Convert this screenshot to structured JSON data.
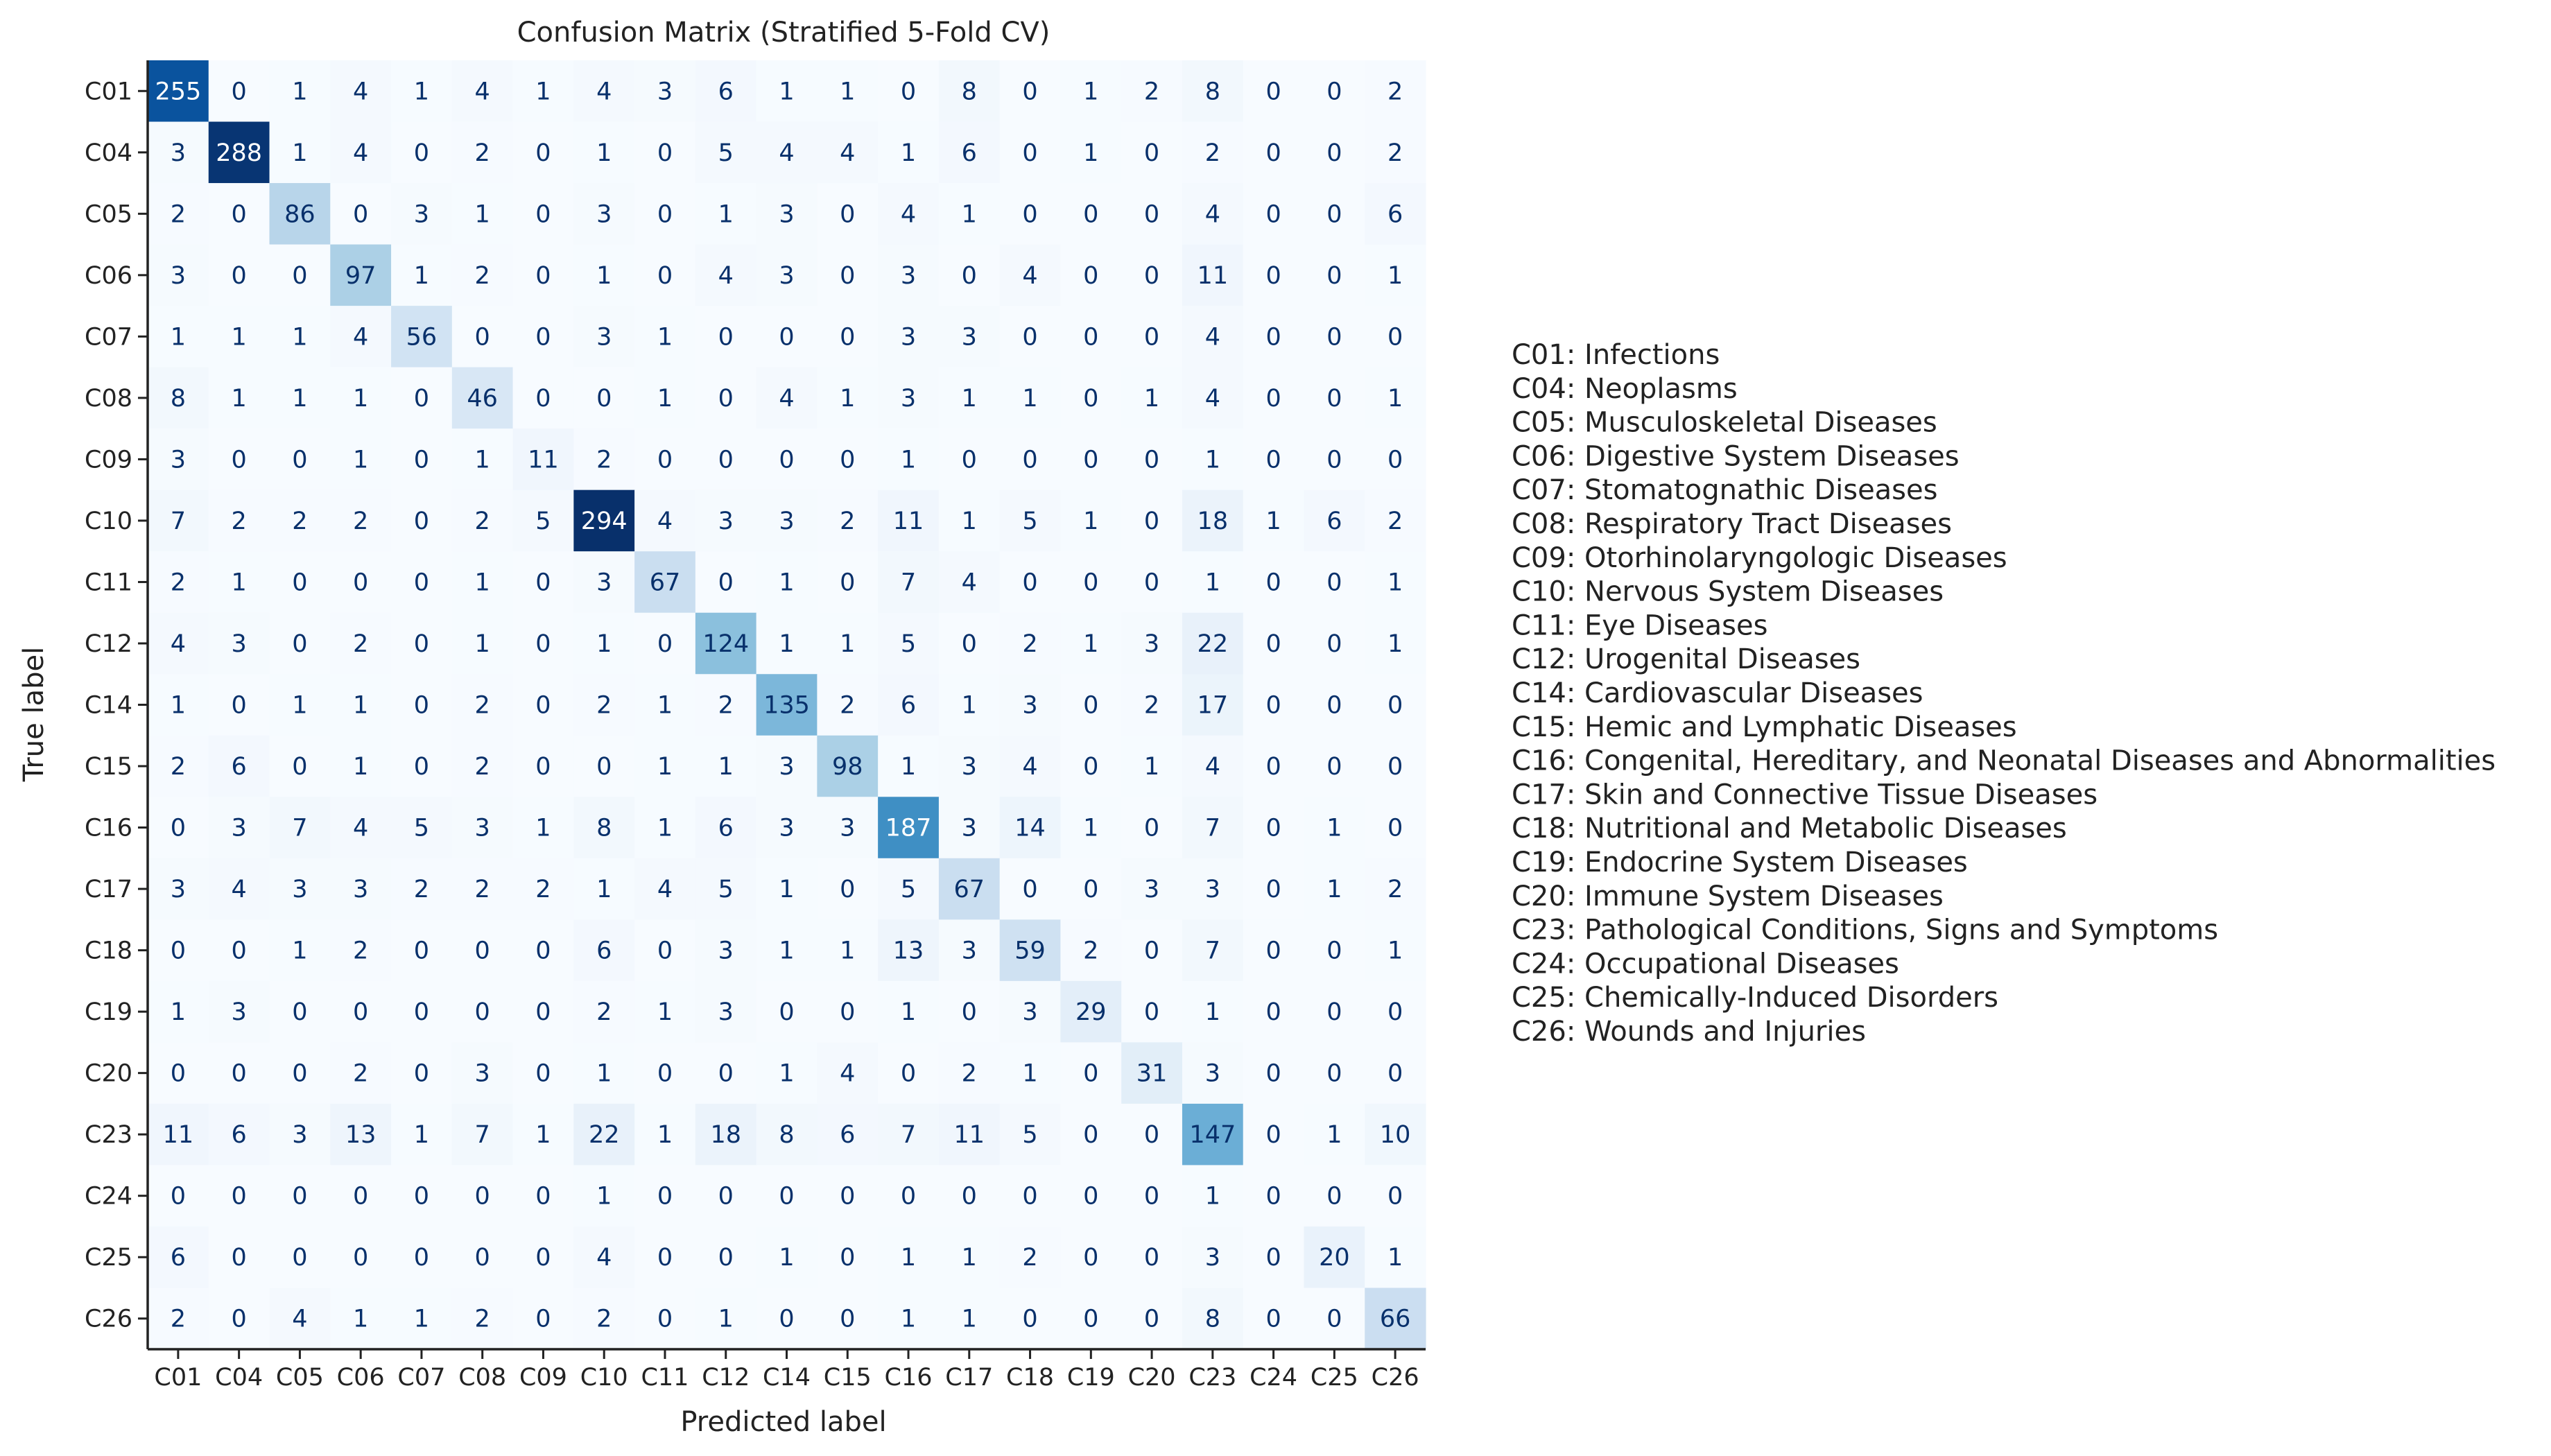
{
  "chart_data": {
    "type": "heatmap",
    "title": "Confusion Matrix (Stratified 5-Fold CV)",
    "xlabel": "Predicted label",
    "ylabel": "True label",
    "colormap": "Blues",
    "categories": [
      "C01",
      "C04",
      "C05",
      "C06",
      "C07",
      "C08",
      "C09",
      "C10",
      "C11",
      "C12",
      "C14",
      "C15",
      "C16",
      "C17",
      "C18",
      "C19",
      "C20",
      "C23",
      "C24",
      "C25",
      "C26"
    ],
    "matrix": [
      [
        255,
        0,
        1,
        4,
        1,
        4,
        1,
        4,
        3,
        6,
        1,
        1,
        0,
        8,
        0,
        1,
        2,
        8,
        0,
        0,
        2
      ],
      [
        3,
        288,
        1,
        4,
        0,
        2,
        0,
        1,
        0,
        5,
        4,
        4,
        1,
        6,
        0,
        1,
        0,
        2,
        0,
        0,
        2
      ],
      [
        2,
        0,
        86,
        0,
        3,
        1,
        0,
        3,
        0,
        1,
        3,
        0,
        4,
        1,
        0,
        0,
        0,
        4,
        0,
        0,
        6
      ],
      [
        3,
        0,
        0,
        97,
        1,
        2,
        0,
        1,
        0,
        4,
        3,
        0,
        3,
        0,
        4,
        0,
        0,
        11,
        0,
        0,
        1
      ],
      [
        1,
        1,
        1,
        4,
        56,
        0,
        0,
        3,
        1,
        0,
        0,
        0,
        3,
        3,
        0,
        0,
        0,
        4,
        0,
        0,
        0
      ],
      [
        8,
        1,
        1,
        1,
        0,
        46,
        0,
        0,
        1,
        0,
        4,
        1,
        3,
        1,
        1,
        0,
        1,
        4,
        0,
        0,
        1
      ],
      [
        3,
        0,
        0,
        1,
        0,
        1,
        11,
        2,
        0,
        0,
        0,
        0,
        1,
        0,
        0,
        0,
        0,
        1,
        0,
        0,
        0
      ],
      [
        7,
        2,
        2,
        2,
        0,
        2,
        5,
        294,
        4,
        3,
        3,
        2,
        11,
        1,
        5,
        1,
        0,
        18,
        1,
        6,
        2
      ],
      [
        2,
        1,
        0,
        0,
        0,
        1,
        0,
        3,
        67,
        0,
        1,
        0,
        7,
        4,
        0,
        0,
        0,
        1,
        0,
        0,
        1
      ],
      [
        4,
        3,
        0,
        2,
        0,
        1,
        0,
        1,
        0,
        124,
        1,
        1,
        5,
        0,
        2,
        1,
        3,
        22,
        0,
        0,
        1
      ],
      [
        1,
        0,
        1,
        1,
        0,
        2,
        0,
        2,
        1,
        2,
        135,
        2,
        6,
        1,
        3,
        0,
        2,
        17,
        0,
        0,
        0
      ],
      [
        2,
        6,
        0,
        1,
        0,
        2,
        0,
        0,
        1,
        1,
        3,
        98,
        1,
        3,
        4,
        0,
        1,
        4,
        0,
        0,
        0
      ],
      [
        0,
        3,
        7,
        4,
        5,
        3,
        1,
        8,
        1,
        6,
        3,
        3,
        187,
        3,
        14,
        1,
        0,
        7,
        0,
        1,
        0
      ],
      [
        3,
        4,
        3,
        3,
        2,
        2,
        2,
        1,
        4,
        5,
        1,
        0,
        5,
        67,
        0,
        0,
        3,
        3,
        0,
        1,
        2
      ],
      [
        0,
        0,
        1,
        2,
        0,
        0,
        0,
        6,
        0,
        3,
        1,
        1,
        13,
        3,
        59,
        2,
        0,
        7,
        0,
        0,
        1
      ],
      [
        1,
        3,
        0,
        0,
        0,
        0,
        0,
        2,
        1,
        3,
        0,
        0,
        1,
        0,
        3,
        29,
        0,
        1,
        0,
        0,
        0
      ],
      [
        0,
        0,
        0,
        2,
        0,
        3,
        0,
        1,
        0,
        0,
        1,
        4,
        0,
        2,
        1,
        0,
        31,
        3,
        0,
        0,
        0
      ],
      [
        11,
        6,
        3,
        13,
        1,
        7,
        1,
        22,
        1,
        18,
        8,
        6,
        7,
        11,
        5,
        0,
        0,
        147,
        0,
        1,
        10
      ],
      [
        0,
        0,
        0,
        0,
        0,
        0,
        0,
        1,
        0,
        0,
        0,
        0,
        0,
        0,
        0,
        0,
        0,
        1,
        0,
        0,
        0
      ],
      [
        6,
        0,
        0,
        0,
        0,
        0,
        0,
        4,
        0,
        0,
        1,
        0,
        1,
        1,
        2,
        0,
        0,
        3,
        0,
        20,
        1
      ],
      [
        2,
        0,
        4,
        1,
        1,
        2,
        0,
        2,
        0,
        1,
        0,
        0,
        1,
        1,
        0,
        0,
        0,
        8,
        0,
        0,
        66
      ]
    ],
    "legend": [
      "C01: Infections",
      "C04: Neoplasms",
      "C05: Musculoskeletal Diseases",
      "C06: Digestive System Diseases",
      "C07: Stomatognathic Diseases",
      "C08: Respiratory Tract Diseases",
      "C09: Otorhinolaryngologic Diseases",
      "C10: Nervous System Diseases",
      "C11: Eye Diseases",
      "C12: Urogenital Diseases",
      "C14: Cardiovascular Diseases",
      "C15: Hemic and Lymphatic Diseases",
      "C16: Congenital, Hereditary, and Neonatal Diseases and Abnormalities",
      "C17: Skin and Connective Tissue Diseases",
      "C18: Nutritional and Metabolic Diseases",
      "C19: Endocrine System Diseases",
      "C20: Immune System Diseases",
      "C23: Pathological Conditions, Signs and Symptoms",
      "C24: Occupational Diseases",
      "C25: Chemically-Induced Disorders",
      "C26: Wounds and Injuries"
    ],
    "legend_position": "right",
    "grid": false,
    "value_range": [
      0,
      294
    ]
  }
}
